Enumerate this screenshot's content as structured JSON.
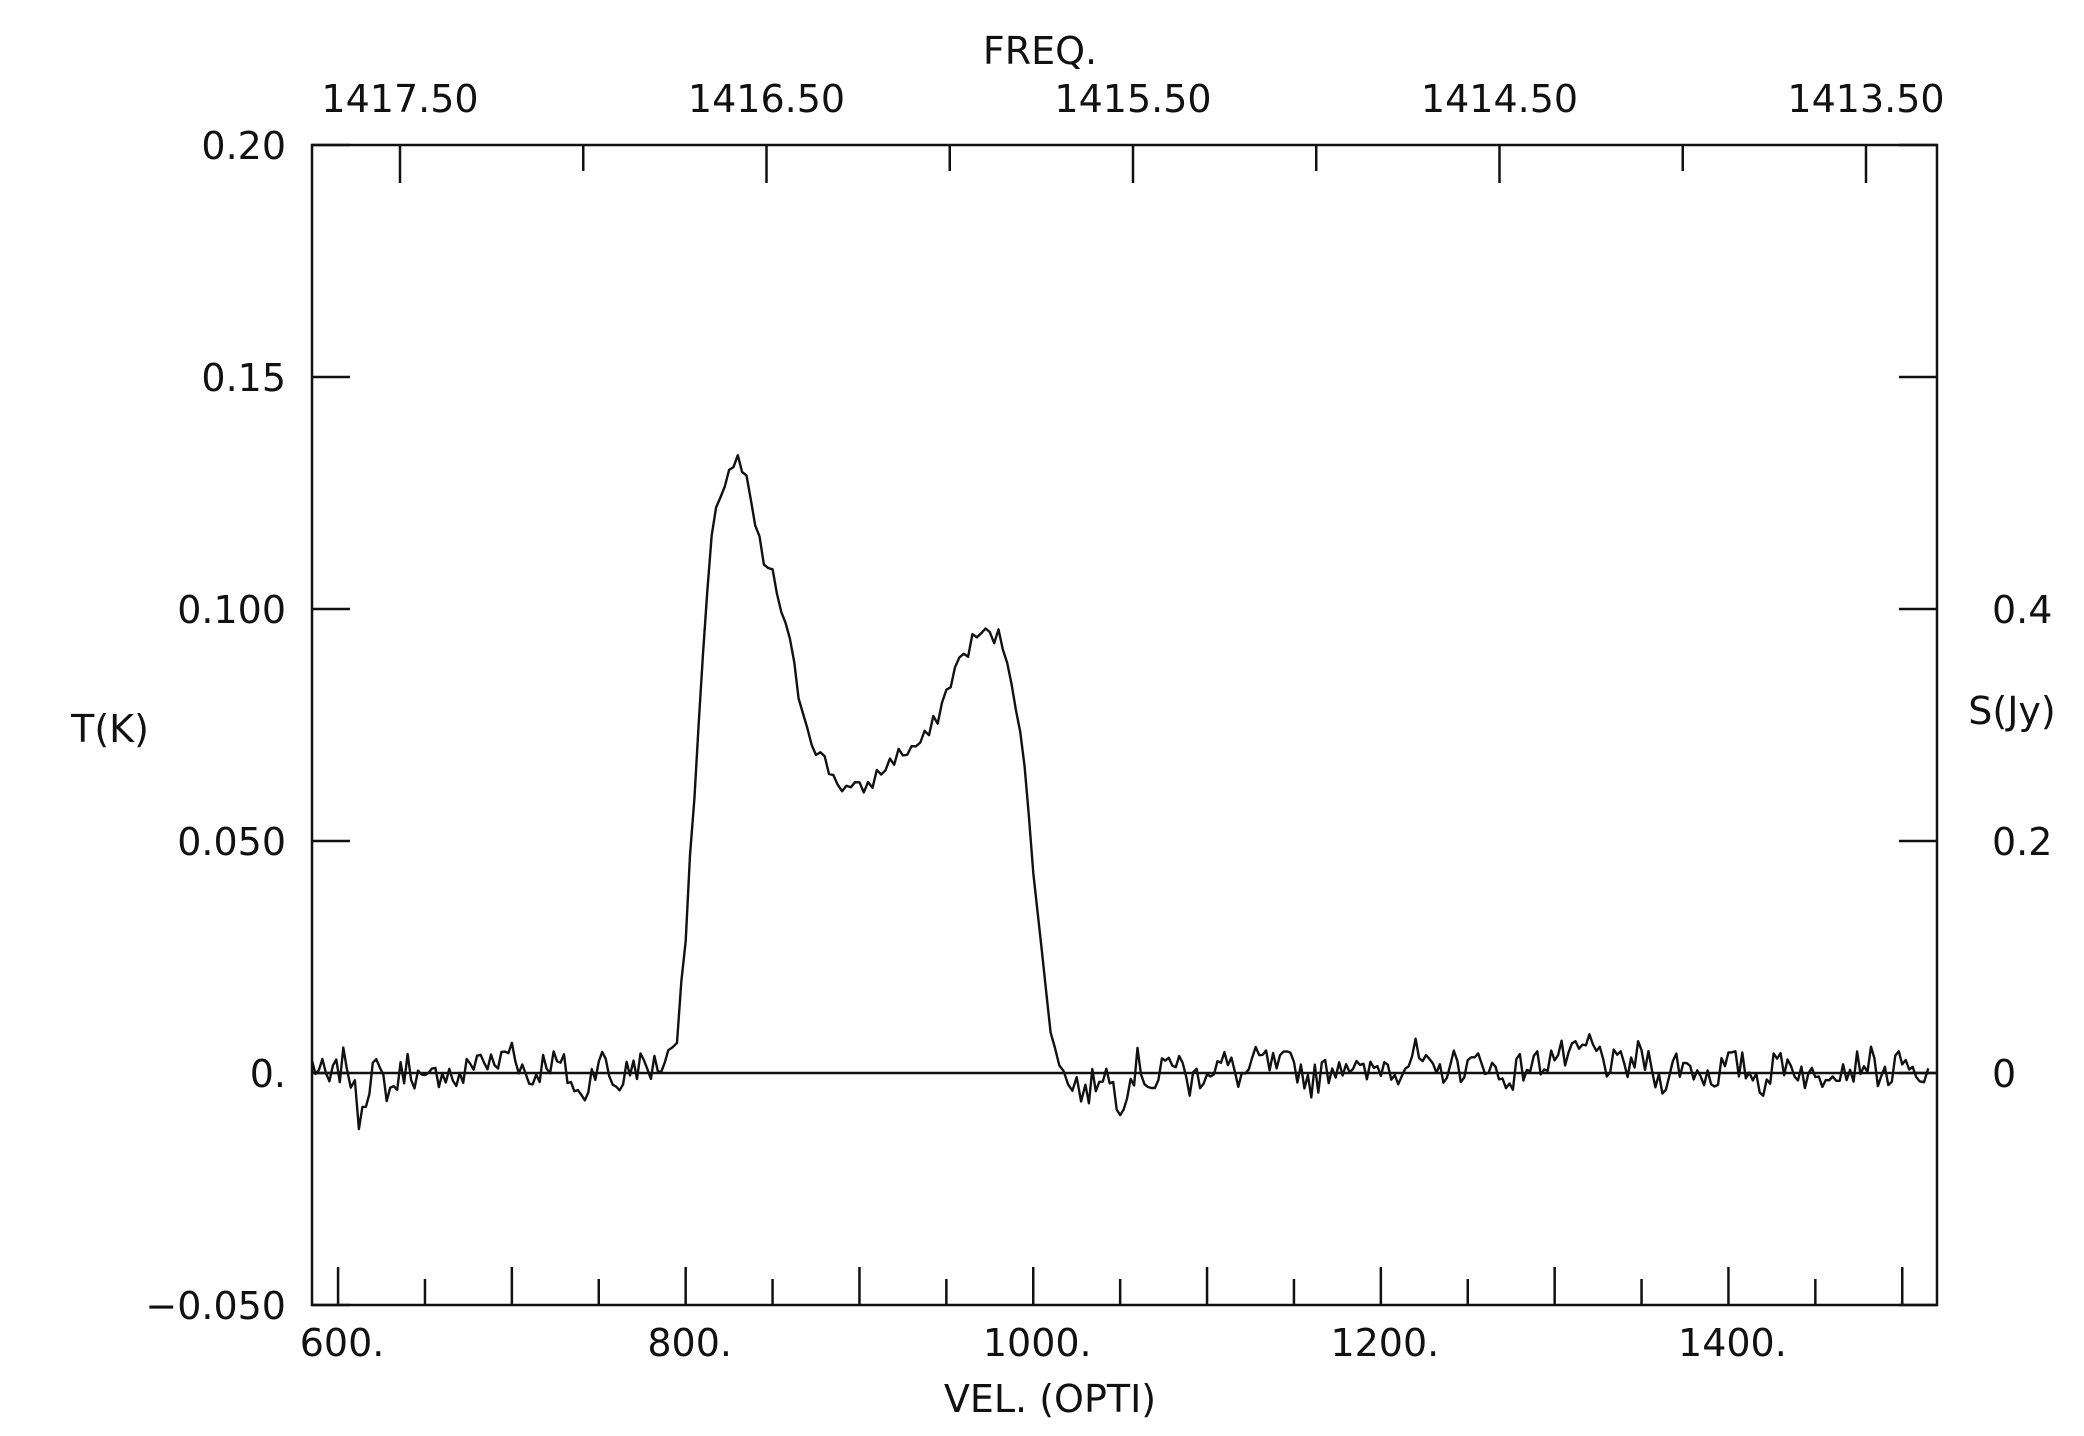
{
  "chart_data": {
    "type": "line",
    "title": "",
    "xlabel": "VEL. (OPTI)",
    "xlabel_top": "FREQ.",
    "ylabel": "T(K)",
    "ylabel_right": "S(Jy)",
    "xlim": [
      585,
      1520
    ],
    "ylim": [
      -0.05,
      0.2
    ],
    "x_ticks": [
      "600.",
      "800.",
      "1000.",
      "1200.",
      "1400."
    ],
    "x_tick_values": [
      600,
      800,
      1000,
      1200,
      1400
    ],
    "y_ticks": [
      "−0.050",
      "0.",
      "0.050",
      "0.100",
      "0.15",
      "0.20"
    ],
    "y_tick_values": [
      -0.05,
      0,
      0.05,
      0.1,
      0.15,
      0.2
    ],
    "top_ticks": [
      "1417.50",
      "1416.50",
      "1415.50",
      "1414.50",
      "1413.50"
    ],
    "top_tick_values": [
      1417.5,
      1416.5,
      1415.5,
      1414.5,
      1413.5
    ],
    "right_ticks": [
      "0",
      "0.2",
      "0.4"
    ],
    "right_tick_values": [
      0,
      0.2,
      0.4
    ],
    "baseline": 0,
    "grid": false,
    "series": [
      {
        "x": [
          585,
          595,
          605,
          612,
          620,
          630,
          640,
          650,
          660,
          670,
          680,
          690,
          700,
          710,
          720,
          730,
          740,
          750,
          760,
          770,
          780,
          790,
          795,
          800,
          805,
          810,
          815,
          820,
          825,
          830,
          835,
          840,
          845,
          850,
          855,
          860,
          865,
          870,
          875,
          880,
          885,
          890,
          895,
          900,
          905,
          910,
          915,
          920,
          925,
          930,
          935,
          940,
          945,
          950,
          955,
          960,
          965,
          970,
          975,
          980,
          985,
          990,
          995,
          1000,
          1005,
          1010,
          1015,
          1020,
          1025,
          1030,
          1040,
          1050,
          1060,
          1070,
          1080,
          1090,
          1100,
          1110,
          1120,
          1130,
          1140,
          1150,
          1160,
          1170,
          1180,
          1190,
          1200,
          1210,
          1220,
          1230,
          1240,
          1250,
          1260,
          1270,
          1280,
          1290,
          1300,
          1310,
          1320,
          1330,
          1340,
          1350,
          1360,
          1370,
          1380,
          1390,
          1400,
          1410,
          1420,
          1430,
          1440,
          1450,
          1460,
          1470,
          1480,
          1490,
          1500,
          1510,
          1515
        ],
        "y": [
          0.002,
          -0.002,
          0.003,
          -0.009,
          0.001,
          -0.004,
          0.002,
          -0.003,
          0.001,
          -0.002,
          0.004,
          0.001,
          0.006,
          -0.002,
          0.003,
          0.001,
          -0.006,
          0.004,
          -0.003,
          0.002,
          0.001,
          0.003,
          0.01,
          0.03,
          0.06,
          0.09,
          0.115,
          0.125,
          0.13,
          0.132,
          0.127,
          0.118,
          0.11,
          0.107,
          0.1,
          0.092,
          0.082,
          0.075,
          0.07,
          0.067,
          0.064,
          0.062,
          0.061,
          0.061,
          0.062,
          0.064,
          0.066,
          0.068,
          0.069,
          0.07,
          0.071,
          0.073,
          0.077,
          0.082,
          0.087,
          0.09,
          0.093,
          0.095,
          0.094,
          0.094,
          0.09,
          0.08,
          0.065,
          0.045,
          0.025,
          0.01,
          0.003,
          -0.003,
          -0.002,
          -0.005,
          0.001,
          -0.006,
          0.002,
          -0.003,
          0.004,
          -0.002,
          0.001,
          0.002,
          -0.001,
          0.003,
          0.001,
          0.002,
          -0.002,
          0.001,
          0.003,
          -0.001,
          0.002,
          0.001,
          0.004,
          -0.001,
          0.002,
          0.001,
          0.003,
          -0.002,
          0.001,
          0.002,
          0.004,
          0.003,
          0.006,
          0.002,
          0.001,
          0.004,
          -0.002,
          0.002,
          0.001,
          -0.001,
          0.002,
          0.001,
          -0.002,
          0.003,
          0.001,
          -0.002,
          0.002,
          0.001,
          0.003,
          -0.001,
          0.002,
          -0.003,
          0.001
        ]
      }
    ]
  }
}
